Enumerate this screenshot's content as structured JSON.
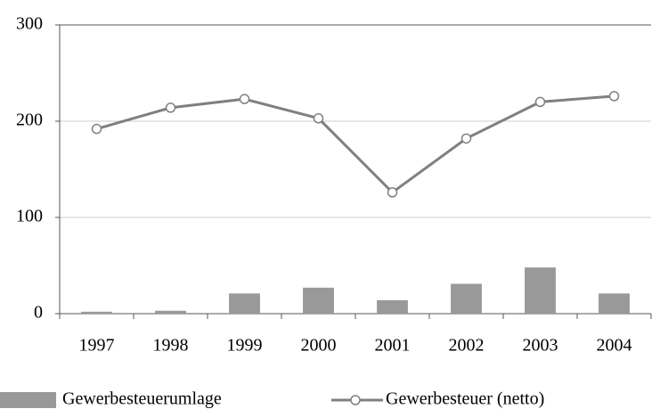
{
  "chart_data": {
    "type": "combo",
    "categories": [
      "1997",
      "1998",
      "1999",
      "2000",
      "2001",
      "2002",
      "2003",
      "2004"
    ],
    "series": [
      {
        "name": "Gewerbesteuerumlage",
        "type": "bar",
        "color": "#999999",
        "values": [
          2,
          3,
          21,
          27,
          14,
          31,
          48,
          21
        ]
      },
      {
        "name": "Gewerbesteuer (netto)",
        "type": "line",
        "color": "#808080",
        "values": [
          192,
          214,
          223,
          203,
          126,
          182,
          220,
          226
        ]
      }
    ],
    "ylim": [
      0,
      300
    ],
    "yticks": [
      0,
      100,
      200,
      300
    ],
    "grid": true,
    "legend": "bottom"
  }
}
